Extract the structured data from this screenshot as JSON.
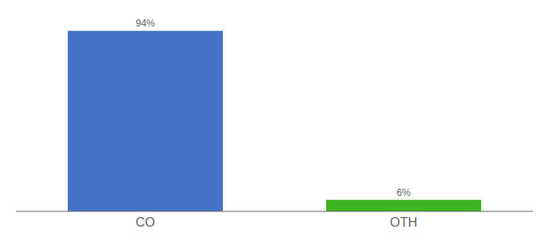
{
  "chart_data": {
    "type": "bar",
    "categories": [
      "CO",
      "OTH"
    ],
    "values": [
      94,
      6
    ],
    "value_labels": [
      "94%",
      "6%"
    ],
    "colors": [
      "#4472c4",
      "#3cb520"
    ],
    "ylim": [
      0,
      100
    ],
    "data_labels": true,
    "tick_labels": "x",
    "grid": false
  }
}
